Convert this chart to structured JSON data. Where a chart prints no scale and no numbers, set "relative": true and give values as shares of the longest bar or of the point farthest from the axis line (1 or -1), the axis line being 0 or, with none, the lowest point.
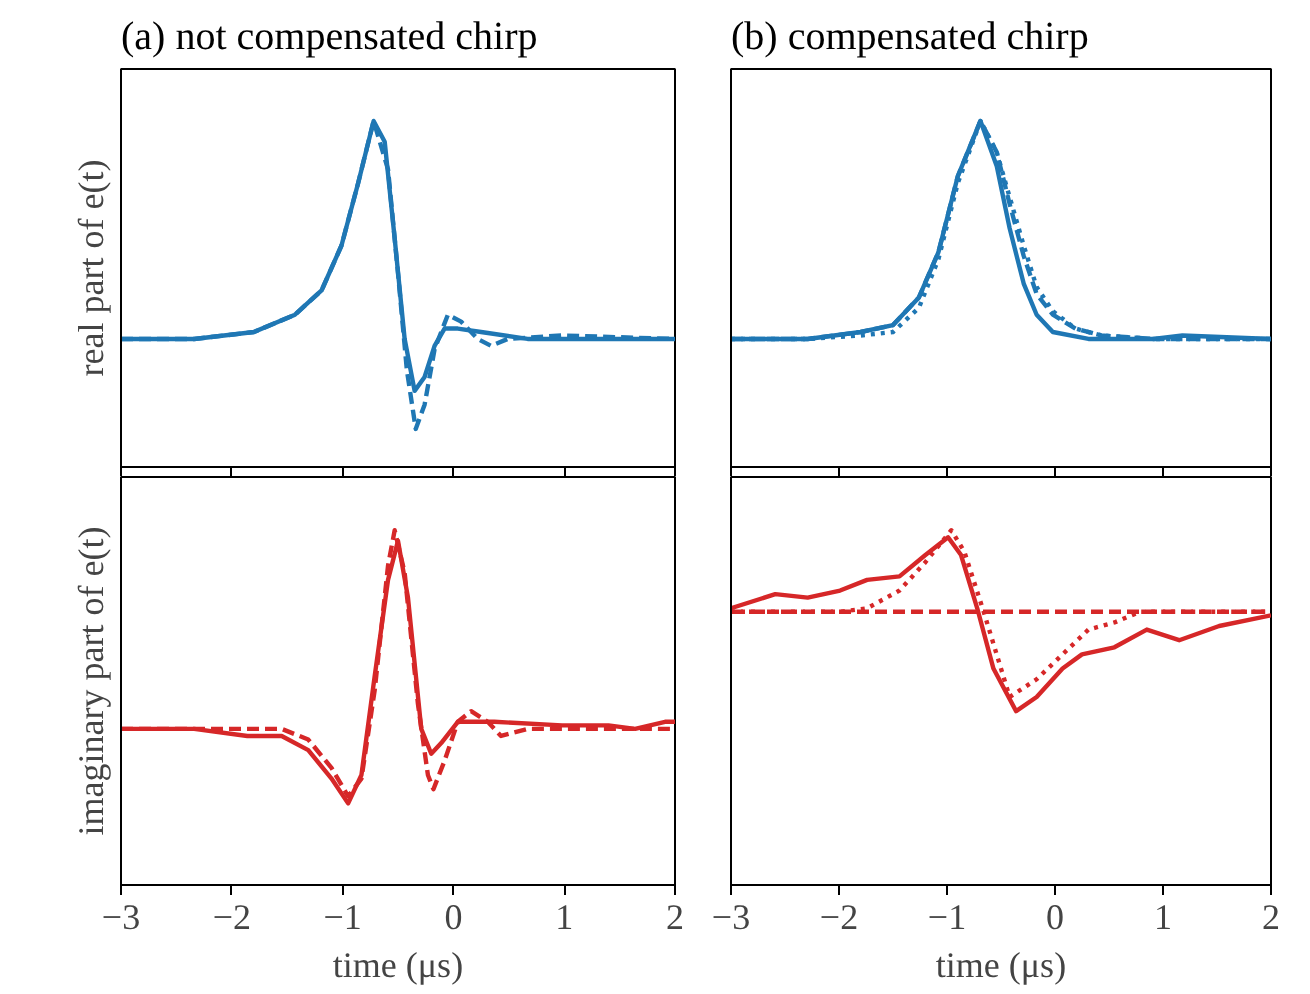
{
  "chart_data": [
    {
      "type": "line",
      "title": "(a) not compensated chirp",
      "ylabel": "real part of e(t)",
      "relative": true,
      "xlim": [
        -3,
        2
      ],
      "xticks": [
        -3,
        -2,
        -1,
        0,
        1,
        2
      ],
      "tick_labels": false,
      "grid": false,
      "series": [
        {
          "color": "#1f77b4",
          "line_style": "solid",
          "x": [
            -3,
            -2.34,
            -1.8,
            -1.43,
            -1.19,
            -1.01,
            -0.86,
            -0.72,
            -0.62,
            -0.53,
            -0.44,
            -0.35,
            -0.26,
            -0.17,
            -0.08,
            0.04,
            0.25,
            0.67,
            0.98,
            1.58,
            1.91,
            2
          ],
          "values": [
            0.37,
            0.37,
            0.39,
            0.44,
            0.51,
            0.64,
            0.82,
            1.0,
            0.94,
            0.66,
            0.37,
            0.22,
            0.26,
            0.35,
            0.4,
            0.4,
            0.39,
            0.37,
            0.37,
            0.37,
            0.37,
            0.37
          ]
        },
        {
          "color": "#1f77b4",
          "line_style": "dashed",
          "x": [
            -3,
            -2.34,
            -1.8,
            -1.43,
            -1.19,
            -1.01,
            -0.86,
            -0.72,
            -0.59,
            -0.5,
            -0.42,
            -0.34,
            -0.26,
            -0.17,
            -0.05,
            0.07,
            0.22,
            0.34,
            0.49,
            0.98,
            2
          ],
          "values": [
            0.37,
            0.37,
            0.39,
            0.44,
            0.51,
            0.64,
            0.82,
            1.0,
            0.86,
            0.56,
            0.28,
            0.11,
            0.18,
            0.34,
            0.44,
            0.42,
            0.37,
            0.35,
            0.37,
            0.38,
            0.37
          ]
        }
      ]
    },
    {
      "type": "line",
      "title": "(b) compensated chirp",
      "relative": true,
      "xlim": [
        -3,
        2
      ],
      "xticks": [
        -3,
        -2,
        -1,
        0,
        1,
        2
      ],
      "tick_labels": false,
      "grid": false,
      "series": [
        {
          "color": "#1f77b4",
          "line_style": "solid",
          "x": [
            -3,
            -2.29,
            -1.8,
            -1.5,
            -1.26,
            -1.08,
            -0.9,
            -0.69,
            -0.54,
            -0.42,
            -0.29,
            -0.17,
            -0.02,
            0.31,
            0.91,
            1.18,
            2
          ],
          "values": [
            0.37,
            0.37,
            0.39,
            0.41,
            0.49,
            0.62,
            0.84,
            1.0,
            0.87,
            0.69,
            0.53,
            0.44,
            0.39,
            0.37,
            0.37,
            0.38,
            0.37
          ]
        },
        {
          "color": "#1f77b4",
          "line_style": "dashed",
          "x": [
            -3,
            -2.29,
            -1.8,
            -1.5,
            -1.26,
            -1.08,
            -0.9,
            -0.69,
            -0.54,
            -0.42,
            -0.29,
            -0.17,
            -0.02,
            0.19,
            0.43,
            0.91,
            2
          ],
          "values": [
            0.37,
            0.37,
            0.39,
            0.41,
            0.49,
            0.62,
            0.84,
            1.0,
            0.91,
            0.76,
            0.61,
            0.5,
            0.44,
            0.4,
            0.38,
            0.37,
            0.37
          ]
        },
        {
          "color": "#1f77b4",
          "line_style": "dotted",
          "x": [
            -3,
            -2.29,
            -1.8,
            -1.5,
            -1.26,
            -1.08,
            -0.9,
            -0.69,
            -0.54,
            -0.42,
            -0.29,
            -0.17,
            -0.02,
            0.19,
            0.43,
            0.91,
            2
          ],
          "values": [
            0.37,
            0.37,
            0.38,
            0.39,
            0.46,
            0.6,
            0.82,
            1.0,
            0.91,
            0.78,
            0.64,
            0.52,
            0.45,
            0.4,
            0.38,
            0.37,
            0.37
          ]
        }
      ]
    },
    {
      "type": "line",
      "ylabel": "imaginary part of e(t)",
      "xlabel": "time (μs)",
      "relative": true,
      "xlim": [
        -3,
        2
      ],
      "xticks": [
        -3,
        -2,
        -1,
        0,
        1,
        2
      ],
      "tick_labels": "x",
      "grid": false,
      "series": [
        {
          "color": "#d62728",
          "line_style": "solid",
          "x": [
            -3,
            -2.34,
            -1.86,
            -1.55,
            -1.31,
            -1.1,
            -0.95,
            -0.83,
            -0.71,
            -0.59,
            -0.5,
            -0.41,
            -0.29,
            -0.2,
            -0.11,
            0.04,
            0.37,
            0.98,
            1.4,
            1.64,
            1.91,
            2
          ],
          "values": [
            0.44,
            0.44,
            0.42,
            0.42,
            0.38,
            0.3,
            0.23,
            0.31,
            0.59,
            0.86,
            0.97,
            0.81,
            0.44,
            0.37,
            0.4,
            0.46,
            0.46,
            0.45,
            0.45,
            0.44,
            0.46,
            0.46
          ]
        },
        {
          "color": "#d62728",
          "line_style": "dashed",
          "x": [
            -3,
            -1.55,
            -1.31,
            -1.1,
            -0.95,
            -0.83,
            -0.71,
            -0.59,
            -0.53,
            -0.44,
            -0.32,
            -0.23,
            -0.18,
            -0.08,
            0.04,
            0.16,
            0.31,
            0.43,
            0.67,
            0.98,
            2
          ],
          "values": [
            0.44,
            0.44,
            0.41,
            0.33,
            0.25,
            0.3,
            0.55,
            0.9,
            1.0,
            0.88,
            0.51,
            0.31,
            0.27,
            0.35,
            0.46,
            0.49,
            0.46,
            0.42,
            0.44,
            0.44,
            0.44
          ]
        }
      ]
    },
    {
      "type": "line",
      "xlabel": "time (μs)",
      "relative": true,
      "xlim": [
        -3,
        2
      ],
      "xticks": [
        -3,
        -2,
        -1,
        0,
        1,
        2
      ],
      "tick_labels": "x",
      "grid": false,
      "series": [
        {
          "color": "#d62728",
          "line_style": "solid",
          "x": [
            -3,
            -2.59,
            -2.29,
            -1.99,
            -1.74,
            -1.44,
            -1.2,
            -0.99,
            -0.87,
            -0.72,
            -0.57,
            -0.36,
            -0.17,
            0.07,
            0.25,
            0.55,
            0.85,
            1.15,
            1.52,
            2
          ],
          "values": [
            0.78,
            0.82,
            0.81,
            0.83,
            0.86,
            0.87,
            0.93,
            0.98,
            0.93,
            0.78,
            0.61,
            0.49,
            0.53,
            0.61,
            0.65,
            0.67,
            0.72,
            0.69,
            0.73,
            0.76
          ]
        },
        {
          "color": "#d62728",
          "line_style": "dashed",
          "x": [
            -3,
            2
          ],
          "values": [
            0.77,
            0.77
          ]
        },
        {
          "color": "#d62728",
          "line_style": "dotted",
          "x": [
            -3,
            -1.99,
            -1.74,
            -1.44,
            -1.2,
            -0.96,
            -0.84,
            -0.66,
            -0.42,
            -0.17,
            0.07,
            0.31,
            0.55,
            0.79,
            2
          ],
          "values": [
            0.77,
            0.77,
            0.78,
            0.83,
            0.91,
            1.0,
            0.94,
            0.77,
            0.53,
            0.58,
            0.65,
            0.72,
            0.74,
            0.77,
            0.77
          ]
        }
      ]
    }
  ]
}
